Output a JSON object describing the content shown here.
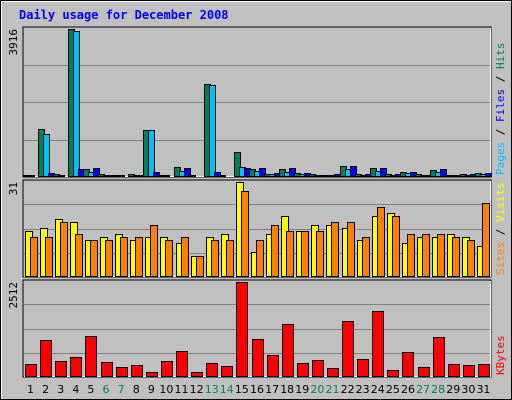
{
  "chart_data": {
    "type": "bar",
    "title": "Daily usage for December 2008",
    "days": [
      "1",
      "2",
      "3",
      "4",
      "5",
      "6",
      "7",
      "8",
      "9",
      "10",
      "11",
      "12",
      "13",
      "14",
      "15",
      "16",
      "17",
      "18",
      "19",
      "20",
      "21",
      "22",
      "23",
      "24",
      "25",
      "26",
      "27",
      "28",
      "29",
      "30",
      "31"
    ],
    "weekend_days": [
      "6",
      "7",
      "13",
      "14",
      "20",
      "21",
      "27",
      "28"
    ],
    "colors": {
      "hits": "#00805c",
      "files": "#00c0ff",
      "pages": "#0000ff",
      "visits": "#ffff00",
      "sites": "#ff8000",
      "kbytes": "#ff0000",
      "weekday_label": "#000000",
      "weekend_label": "#00805c"
    },
    "panels": [
      {
        "id": "hits-files-pages",
        "ymax_label": "3916",
        "ylim": [
          0,
          3916
        ],
        "legend": [
          {
            "name": "Pages",
            "color": "#00c0ff"
          },
          {
            "name": "Files",
            "color": "#0000ff"
          },
          {
            "name": "Hits",
            "color": "#00805c"
          }
        ],
        "series": [
          {
            "name": "Hits",
            "values": [
              60,
              1280,
              80,
              3916,
              200,
              70,
              50,
              80,
              1250,
              60,
              260,
              40,
              2450,
              40,
              670,
              220,
              90,
              220,
              100,
              80,
              60,
              300,
              80,
              230,
              90,
              130,
              70,
              190,
              60,
              70,
              110
            ]
          },
          {
            "name": "Files",
            "values": [
              40,
              1150,
              60,
              3850,
              140,
              50,
              40,
              60,
              1250,
              40,
              150,
              30,
              2430,
              30,
              260,
              150,
              70,
              140,
              70,
              60,
              50,
              220,
              60,
              150,
              60,
              100,
              50,
              120,
              50,
              50,
              80
            ]
          },
          {
            "name": "Pages",
            "values": [
              20,
              100,
              30,
              200,
              230,
              50,
              30,
              60,
              120,
              30,
              230,
              30,
              120,
              30,
              250,
              240,
              100,
              230,
              110,
              60,
              70,
              280,
              70,
              250,
              90,
              130,
              60,
              200,
              60,
              80,
              110
            ]
          }
        ]
      },
      {
        "id": "visits-sites",
        "ymax_label": "31",
        "ylim": [
          0,
          31
        ],
        "legend": [
          {
            "name": "Sites",
            "color": "#ff8000"
          },
          {
            "name": "Visits",
            "color": "#ffff00"
          }
        ],
        "series": [
          {
            "name": "Visits",
            "values": [
              15,
              16,
              19,
              18,
              12,
              13,
              14,
              12,
              13,
              13,
              11,
              7,
              13,
              14,
              31,
              8,
              14,
              20,
              15,
              17,
              17,
              16,
              12,
              20,
              21,
              11,
              13,
              13,
              14,
              13,
              10
            ]
          },
          {
            "name": "Sites",
            "values": [
              13,
              13,
              18,
              14,
              12,
              12,
              13,
              13,
              17,
              12,
              13,
              7,
              12,
              12,
              28,
              12,
              17,
              15,
              15,
              15,
              18,
              18,
              13,
              23,
              20,
              14,
              14,
              14,
              13,
              12,
              24
            ]
          }
        ]
      },
      {
        "id": "kbytes",
        "ymax_label": "2512",
        "ylim": [
          0,
          2512
        ],
        "legend": [
          {
            "name": "KBytes",
            "color": "#ff0000"
          }
        ],
        "series": [
          {
            "name": "KBytes",
            "values": [
              340,
              970,
              410,
              540,
              1090,
              390,
              260,
              330,
              140,
              410,
              700,
              130,
              360,
              290,
              2512,
              1010,
              580,
              1410,
              380,
              440,
              250,
              1480,
              480,
              1740,
              180,
              660,
              270,
              1060,
              350,
              310,
              340
            ]
          }
        ]
      }
    ]
  }
}
